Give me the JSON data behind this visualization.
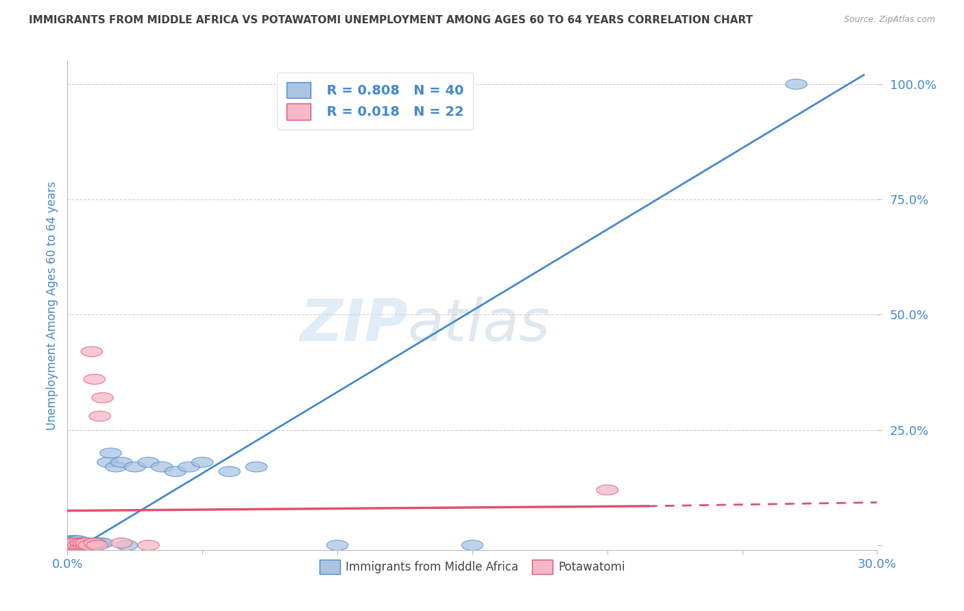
{
  "title": "IMMIGRANTS FROM MIDDLE AFRICA VS POTAWATOMI UNEMPLOYMENT AMONG AGES 60 TO 64 YEARS CORRELATION CHART",
  "source": "Source: ZipAtlas.com",
  "ylabel": "Unemployment Among Ages 60 to 64 years",
  "xlim": [
    0.0,
    0.3
  ],
  "ylim": [
    -0.01,
    1.05
  ],
  "xticks": [
    0.0,
    0.05,
    0.1,
    0.15,
    0.2,
    0.25,
    0.3
  ],
  "xticklabels": [
    "0.0%",
    "",
    "",
    "",
    "",
    "",
    "30.0%"
  ],
  "ytick_positions": [
    0.0,
    0.25,
    0.5,
    0.75,
    1.0
  ],
  "ytick_labels": [
    "",
    "25.0%",
    "50.0%",
    "75.0%",
    "100.0%"
  ],
  "blue_R": 0.808,
  "blue_N": 40,
  "pink_R": 0.018,
  "pink_N": 22,
  "blue_color": "#aac4e2",
  "blue_line_color": "#4488cc",
  "pink_color": "#f5b8c8",
  "pink_line_color": "#e05070",
  "legend_label_blue": "Immigrants from Middle Africa",
  "legend_label_pink": "Potawatomi",
  "blue_scatter_x": [
    0.001,
    0.001,
    0.001,
    0.002,
    0.002,
    0.003,
    0.003,
    0.003,
    0.004,
    0.004,
    0.004,
    0.005,
    0.005,
    0.006,
    0.006,
    0.007,
    0.007,
    0.008,
    0.009,
    0.01,
    0.01,
    0.011,
    0.012,
    0.013,
    0.015,
    0.016,
    0.018,
    0.02,
    0.022,
    0.025,
    0.03,
    0.035,
    0.04,
    0.045,
    0.05,
    0.06,
    0.07,
    0.1,
    0.15,
    0.27
  ],
  "blue_scatter_y": [
    0.0,
    0.005,
    0.01,
    0.0,
    0.01,
    0.0,
    0.005,
    0.01,
    0.0,
    0.005,
    0.01,
    0.0,
    0.005,
    0.0,
    0.005,
    0.0,
    0.005,
    0.005,
    0.0,
    0.0,
    0.005,
    0.005,
    0.005,
    0.005,
    0.18,
    0.2,
    0.17,
    0.18,
    0.0,
    0.17,
    0.18,
    0.17,
    0.16,
    0.17,
    0.18,
    0.16,
    0.17,
    0.0,
    0.0,
    1.0
  ],
  "pink_scatter_x": [
    0.001,
    0.001,
    0.002,
    0.003,
    0.003,
    0.004,
    0.005,
    0.005,
    0.006,
    0.006,
    0.007,
    0.007,
    0.008,
    0.009,
    0.01,
    0.01,
    0.011,
    0.012,
    0.013,
    0.02,
    0.2,
    0.03
  ],
  "pink_scatter_y": [
    0.0,
    0.005,
    0.0,
    0.0,
    0.005,
    0.0,
    0.0,
    0.005,
    0.0,
    0.005,
    0.0,
    0.005,
    0.0,
    0.42,
    0.36,
    0.005,
    0.0,
    0.28,
    0.32,
    0.005,
    0.12,
    0.0
  ],
  "blue_line_x0": 0.0,
  "blue_line_y0": -0.02,
  "blue_line_x1": 0.295,
  "blue_line_y1": 1.02,
  "pink_line_x0": 0.0,
  "pink_line_y0": 0.075,
  "pink_line_x1_solid": 0.215,
  "pink_line_y1_solid": 0.085,
  "pink_line_x1_dash": 0.3,
  "pink_line_y1_dash": 0.093,
  "watermark_zip": "ZIP",
  "watermark_atlas": "atlas",
  "background_color": "#ffffff",
  "grid_color": "#d0d0d0",
  "title_color": "#404040",
  "axis_label_color": "#4488cc",
  "tick_label_color": "#4488cc",
  "legend_R_color": "#4488cc"
}
